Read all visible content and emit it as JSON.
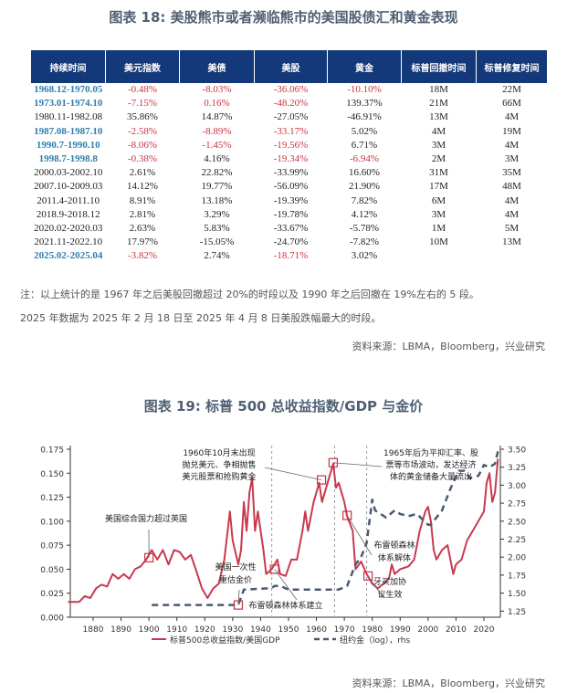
{
  "table_title": "图表 18: 美股熊市或者濒临熊市的美国股债汇和黄金表现",
  "table": {
    "headers": [
      "持续时间",
      "美元指数",
      "美债",
      "美股",
      "黄金",
      "标普回撤时间",
      "标普修复时间"
    ],
    "rows": [
      {
        "cells": [
          "1968.12-1970.05",
          "-0.48%",
          "-8.03%",
          "-36.06%",
          "-10.10%",
          "18M",
          "22M"
        ],
        "style": [
          "blue",
          "red",
          "red",
          "red",
          "red",
          "",
          ""
        ]
      },
      {
        "cells": [
          "1973.01-1974.10",
          "-7.15%",
          "0.16%",
          "-48.20%",
          "139.37%",
          "21M",
          "66M"
        ],
        "style": [
          "blue",
          "red",
          "red",
          "red",
          "",
          "",
          ""
        ]
      },
      {
        "cells": [
          "1980.11-1982.08",
          "35.86%",
          "14.87%",
          "-27.05%",
          "-46.91%",
          "13M",
          "4M"
        ],
        "style": [
          "",
          "",
          "",
          "",
          "",
          "",
          ""
        ]
      },
      {
        "cells": [
          "1987.08-1987.10",
          "-2.58%",
          "-8.89%",
          "-33.17%",
          "5.02%",
          "4M",
          "19M"
        ],
        "style": [
          "blue",
          "red",
          "red",
          "red",
          "",
          "",
          ""
        ]
      },
      {
        "cells": [
          "1990.7-1990.10",
          "-8.06%",
          "-1.45%",
          "-19.56%",
          "6.71%",
          "3M",
          "4M"
        ],
        "style": [
          "blue",
          "red",
          "red",
          "red",
          "",
          "",
          ""
        ]
      },
      {
        "cells": [
          "1998.7-1998.8",
          "-0.38%",
          "4.16%",
          "-19.34%",
          "-6.94%",
          "2M",
          "3M"
        ],
        "style": [
          "blue",
          "red",
          "",
          "red",
          "red",
          "",
          ""
        ]
      },
      {
        "cells": [
          "2000.03-2002.10",
          "2.61%",
          "22.82%",
          "-33.99%",
          "16.60%",
          "31M",
          "35M"
        ],
        "style": [
          "",
          "",
          "",
          "",
          "",
          "",
          ""
        ]
      },
      {
        "cells": [
          "2007.10-2009.03",
          "14.12%",
          "19.77%",
          "-56.09%",
          "21.90%",
          "17M",
          "48M"
        ],
        "style": [
          "",
          "",
          "",
          "",
          "",
          "",
          ""
        ]
      },
      {
        "cells": [
          "2011.4-2011.10",
          "8.91%",
          "13.18%",
          "-19.39%",
          "7.82%",
          "6M",
          "4M"
        ],
        "style": [
          "",
          "",
          "",
          "",
          "",
          "",
          ""
        ]
      },
      {
        "cells": [
          "2018.9-2018.12",
          "2.81%",
          "3.29%",
          "-19.78%",
          "4.12%",
          "3M",
          "4M"
        ],
        "style": [
          "",
          "",
          "",
          "",
          "",
          "",
          ""
        ]
      },
      {
        "cells": [
          "2020.02-2020.03",
          "2.63%",
          "5.83%",
          "-33.67%",
          "-5.78%",
          "1M",
          "5M"
        ],
        "style": [
          "",
          "",
          "",
          "",
          "",
          "",
          ""
        ]
      },
      {
        "cells": [
          "2021.11-2022.10",
          "17.97%",
          "-15.05%",
          "-24.70%",
          "-7.82%",
          "10M",
          "13M"
        ],
        "style": [
          "",
          "",
          "",
          "",
          "",
          "",
          ""
        ]
      },
      {
        "cells": [
          "2025.02-2025.04",
          "-3.82%",
          "2.74%",
          "-18.71%",
          "3.02%",
          "",
          ""
        ],
        "style": [
          "blue",
          "red",
          "",
          "red",
          "",
          "",
          ""
        ]
      }
    ]
  },
  "notes": [
    "注：以上统计的是 1967 年之后美股回撤超过 20%的时段以及 1990 年之后回撤在 19%左右的 5 段。",
    "2025 年数据为 2025 年 2 月 18 日至 2025 年 4 月 8 日美股跌幅最大的时段。"
  ],
  "source_1": "资料来源：LBMA，Bloomberg，兴业研究",
  "chart_title": "图表 19: 标普 500 总收益指数/GDP 与金价",
  "source_2": "资料来源：LBMA，Bloomberg，兴业研究",
  "colors": {
    "header_bg": "#14397a",
    "negative": "#c8343f",
    "highlight_period": "#2f7fab",
    "series_red": "#c8394f",
    "series_gold": "#4a5a70"
  },
  "chart_data": {
    "type": "line",
    "xlim": [
      1871,
      2026
    ],
    "x_ticks": [
      1880,
      1890,
      1900,
      1910,
      1920,
      1930,
      1940,
      1950,
      1960,
      1970,
      1980,
      1990,
      2000,
      2010,
      2020
    ],
    "y_left": {
      "ylim": [
        0,
        0.175
      ],
      "ticks": [
        "0.000",
        "0.025",
        "0.050",
        "0.075",
        "0.100",
        "0.125",
        "0.150",
        "0.175"
      ]
    },
    "y_right": {
      "ylim": [
        1.165,
        3.5
      ],
      "ticks": [
        "1.25",
        "1.50",
        "1.75",
        "2.00",
        "2.25",
        "2.50",
        "2.75",
        "3.00",
        "3.25",
        "3.50"
      ],
      "scale_note": "log"
    },
    "grid": false,
    "legend_position": "bottom",
    "vertical_markers": [
      1944,
      1966.5,
      1978
    ],
    "series": [
      {
        "name": "标普500总收益指数/美国GDP",
        "axis": "left",
        "style": "solid",
        "x": [
          1871,
          1875,
          1877,
          1879,
          1881,
          1883,
          1885,
          1887,
          1889,
          1891,
          1893,
          1895,
          1897,
          1899,
          1901,
          1903,
          1905,
          1907,
          1909,
          1911,
          1913,
          1915,
          1917,
          1919,
          1921,
          1923,
          1925,
          1927,
          1929,
          1930,
          1932,
          1933,
          1934,
          1935,
          1936,
          1937,
          1938,
          1939,
          1941,
          1942,
          1944,
          1946,
          1947,
          1949,
          1951,
          1953,
          1955,
          1956,
          1957,
          1959,
          1961,
          1962,
          1964,
          1966,
          1967,
          1968,
          1970,
          1971,
          1973,
          1974,
          1976,
          1978,
          1980,
          1982,
          1984,
          1986,
          1987,
          1988,
          1990,
          1993,
          1995,
          1997,
          1999,
          2000,
          2001,
          2002,
          2003,
          2005,
          2007,
          2009,
          2010,
          2012,
          2014,
          2016,
          2018,
          2019,
          2020,
          2021,
          2022,
          2023,
          2024,
          2025
        ],
        "y": [
          0.016,
          0.016,
          0.022,
          0.02,
          0.03,
          0.034,
          0.032,
          0.045,
          0.04,
          0.045,
          0.04,
          0.05,
          0.053,
          0.06,
          0.07,
          0.06,
          0.07,
          0.055,
          0.07,
          0.068,
          0.06,
          0.065,
          0.048,
          0.03,
          0.02,
          0.03,
          0.035,
          0.06,
          0.11,
          0.08,
          0.055,
          0.07,
          0.12,
          0.09,
          0.13,
          0.145,
          0.09,
          0.11,
          0.07,
          0.045,
          0.05,
          0.06,
          0.045,
          0.043,
          0.06,
          0.06,
          0.09,
          0.11,
          0.09,
          0.12,
          0.14,
          0.12,
          0.14,
          0.16,
          0.135,
          0.14,
          0.12,
          0.105,
          0.09,
          0.05,
          0.058,
          0.045,
          0.035,
          0.03,
          0.035,
          0.04,
          0.055,
          0.045,
          0.05,
          0.053,
          0.06,
          0.09,
          0.11,
          0.115,
          0.1,
          0.07,
          0.06,
          0.07,
          0.075,
          0.045,
          0.055,
          0.06,
          0.08,
          0.09,
          0.1,
          0.105,
          0.11,
          0.14,
          0.15,
          0.12,
          0.13,
          0.165
        ]
      },
      {
        "name": "纽约金（log），rhs",
        "axis": "right",
        "style": "dashed",
        "x": [
          1901,
          1932,
          1934,
          1944,
          1945,
          1947,
          1950,
          1968,
          1971,
          1974,
          1976,
          1978,
          1980,
          1981,
          1985,
          1988,
          1990,
          1993,
          1996,
          2000,
          2001,
          2005,
          2008,
          2011,
          2013,
          2015,
          2018,
          2020,
          2022,
          2024,
          2025
        ],
        "y": [
          1.335,
          1.335,
          1.55,
          1.57,
          1.6,
          1.6,
          1.55,
          1.55,
          1.6,
          1.9,
          2.0,
          2.2,
          2.8,
          2.65,
          2.55,
          2.65,
          2.6,
          2.57,
          2.6,
          2.45,
          2.45,
          2.65,
          2.95,
          3.2,
          3.2,
          3.1,
          3.13,
          3.28,
          3.25,
          3.3,
          3.47
        ]
      }
    ],
    "annotations": [
      {
        "text": [
          "美国综合国力超过英国"
        ],
        "year": 1900,
        "value": 0.062,
        "axis": "left"
      },
      {
        "text": [
          "美国一次性",
          "重估金价"
        ],
        "year": 1932,
        "value": 1.335,
        "axis": "right"
      },
      {
        "text": [
          "布雷顿森林体系建立"
        ],
        "year": 1945,
        "value": 0.05,
        "axis": "left"
      },
      {
        "text": [
          "1960年10月末出现",
          "抛兑美元、争相抛售",
          "美元股票和抢购黄金"
        ],
        "year": 1961.8,
        "value": 0.143,
        "axis": "left"
      },
      {
        "text": [
          "1965年后为平抑汇率、股",
          "票等市场波动，发达经济",
          "体的黄金储备大量流出"
        ],
        "year": 1966,
        "value": 0.161,
        "axis": "left"
      },
      {
        "text": [
          "布雷顿森林",
          "体系解体"
        ],
        "year": 1971,
        "value": 0.106,
        "axis": "left"
      },
      {
        "text": [
          "牙买加协",
          "议生效"
        ],
        "year": 1978.5,
        "value": 0.043,
        "axis": "left"
      }
    ]
  }
}
